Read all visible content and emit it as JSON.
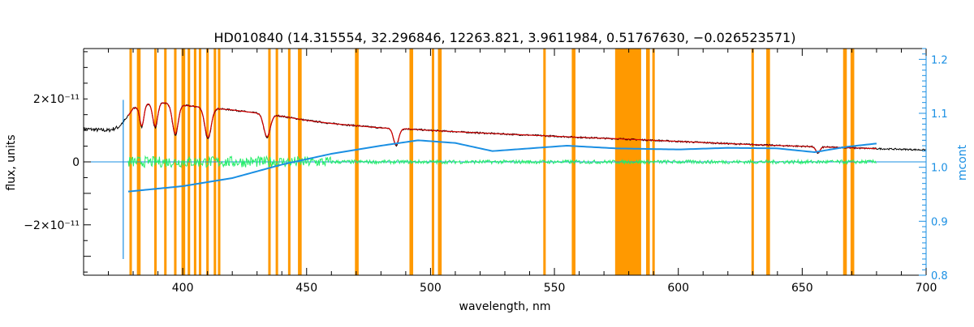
{
  "chart_data": {
    "type": "line",
    "title": "HD010840   (14.315554, 32.296846, 12263.821, 3.9611984, 0.51767630, −0.026523571)",
    "xlabel": "wavelength, nm",
    "ylabel": "flux, units",
    "y2label": "mcont",
    "xlim": [
      360,
      700
    ],
    "ylim": [
      -3.6e-11,
      3.6e-11
    ],
    "y2lim": [
      0.8,
      1.22
    ],
    "x_ticks": [
      400,
      450,
      500,
      550,
      600,
      650,
      700
    ],
    "x_tick_labels": [
      "400",
      "450",
      "500",
      "550",
      "600",
      "650",
      "700"
    ],
    "y_ticks": [
      2e-11,
      0,
      -2e-11
    ],
    "y_tick_labels": [
      "2×10⁻¹¹",
      "0",
      "−2×10⁻¹¹"
    ],
    "y2_ticks": [
      1.2,
      1.1,
      1.0,
      0.9,
      0.8
    ],
    "y2_tick_labels": [
      "1.2",
      "1.1",
      "1.0",
      "0.9",
      "0.8"
    ],
    "colors": {
      "observed": "#000000",
      "model": "#d40000",
      "residual": "#22ee66",
      "mcont": "#1a8fe3",
      "masked": "#ff9900"
    },
    "masked_bands_nm": [
      [
        378.5,
        379.5
      ],
      [
        381.5,
        383
      ],
      [
        388.5,
        389.5
      ],
      [
        392.5,
        393.5
      ],
      [
        396.5,
        397.5
      ],
      [
        399.5,
        401
      ],
      [
        402,
        403
      ],
      [
        404.5,
        405.5
      ],
      [
        406.5,
        407.5
      ],
      [
        409.5,
        410.5
      ],
      [
        412.5,
        413.5
      ],
      [
        414.2,
        415.2
      ],
      [
        434.5,
        435.5
      ],
      [
        437.5,
        438.5
      ],
      [
        442.5,
        443.5
      ],
      [
        446.5,
        448
      ],
      [
        469.5,
        471
      ],
      [
        491.5,
        493
      ],
      [
        500.5,
        501.5
      ],
      [
        503,
        504.5
      ],
      [
        545.5,
        546.5
      ],
      [
        557,
        558.5
      ],
      [
        574.5,
        585
      ],
      [
        587,
        588.5
      ],
      [
        589.5,
        590.5
      ],
      [
        629.5,
        630.5
      ],
      [
        635.5,
        637
      ],
      [
        666.5,
        668
      ],
      [
        669.5,
        671
      ]
    ],
    "observed_flux_points": [
      [
        360,
        1.05e-11
      ],
      [
        365,
        1.02e-11
      ],
      [
        370,
        1e-11
      ],
      [
        374,
        1.1e-11
      ],
      [
        377,
        1.35e-11
      ],
      [
        380,
        1.7e-11
      ],
      [
        385,
        1.85e-11
      ],
      [
        390,
        1.9e-11
      ],
      [
        395,
        1.85e-11
      ],
      [
        400,
        1.8e-11
      ],
      [
        410,
        1.72e-11
      ],
      [
        420,
        1.65e-11
      ],
      [
        430,
        1.55e-11
      ],
      [
        440,
        1.45e-11
      ],
      [
        450,
        1.32e-11
      ],
      [
        460,
        1.22e-11
      ],
      [
        470,
        1.15e-11
      ],
      [
        480,
        1.08e-11
      ],
      [
        490,
        1.05e-11
      ],
      [
        500,
        1e-11
      ],
      [
        520,
        9.2e-12
      ],
      [
        540,
        8.5e-12
      ],
      [
        560,
        7.8e-12
      ],
      [
        580,
        7.2e-12
      ],
      [
        600,
        6.5e-12
      ],
      [
        620,
        5.8e-12
      ],
      [
        640,
        5.2e-12
      ],
      [
        660,
        4.7e-12
      ],
      [
        680,
        4.2e-12
      ],
      [
        700,
        3.8e-12
      ]
    ],
    "absorption_lines": [
      {
        "center_nm": 383.5,
        "depth": 7e-12,
        "width": 1.2
      },
      {
        "center_nm": 388.9,
        "depth": 8e-12,
        "width": 1.4
      },
      {
        "center_nm": 397.0,
        "depth": 1e-11,
        "width": 1.6
      },
      {
        "center_nm": 410.2,
        "depth": 1e-11,
        "width": 1.8
      },
      {
        "center_nm": 434.0,
        "depth": 7.5e-12,
        "width": 1.8
      },
      {
        "center_nm": 486.1,
        "depth": 5.5e-12,
        "width": 1.5
      },
      {
        "center_nm": 656.3,
        "depth": 2e-12,
        "width": 1.2
      }
    ],
    "model_range_nm": [
      378,
      680
    ],
    "residual_range_nm": [
      378,
      680
    ],
    "mcont_points": [
      [
        378,
        0.955
      ],
      [
        400,
        0.965
      ],
      [
        420,
        0.98
      ],
      [
        440,
        1.005
      ],
      [
        460,
        1.025
      ],
      [
        480,
        1.04
      ],
      [
        495,
        1.05
      ],
      [
        510,
        1.045
      ],
      [
        525,
        1.03
      ],
      [
        540,
        1.035
      ],
      [
        555,
        1.04
      ],
      [
        575,
        1.035
      ],
      [
        600,
        1.033
      ],
      [
        620,
        1.036
      ],
      [
        640,
        1.035
      ],
      [
        655,
        1.028
      ],
      [
        668,
        1.038
      ],
      [
        680,
        1.044
      ]
    ],
    "mcont_vline_nm": 376,
    "mcont_vline_range": [
      0.83,
      1.125
    ]
  }
}
